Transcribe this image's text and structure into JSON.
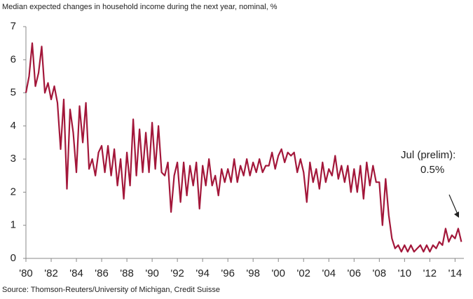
{
  "chart_data": {
    "type": "line",
    "title": "Median expected changes in household income during the next year, nominal, %",
    "source": "Source: Thomson-Reuters/University of Michigan, Credit Suisse",
    "annotations": [
      "Jul (prelim):",
      "0.5%"
    ],
    "xlim": [
      1980,
      2014.7
    ],
    "ylim": [
      0,
      7
    ],
    "yticks": [
      0,
      1,
      2,
      3,
      4,
      5,
      6,
      7
    ],
    "xticks": [
      {
        "value": 1980,
        "label": "'80"
      },
      {
        "value": 1982,
        "label": "'82"
      },
      {
        "value": 1984,
        "label": "'84"
      },
      {
        "value": 1986,
        "label": "'86"
      },
      {
        "value": 1988,
        "label": "'88"
      },
      {
        "value": 1990,
        "label": "'90"
      },
      {
        "value": 1992,
        "label": "'92"
      },
      {
        "value": 1994,
        "label": "'94"
      },
      {
        "value": 1996,
        "label": "'96"
      },
      {
        "value": 1998,
        "label": "'98"
      },
      {
        "value": 2000,
        "label": "'00"
      },
      {
        "value": 2002,
        "label": "'02"
      },
      {
        "value": 2004,
        "label": "'04"
      },
      {
        "value": 2006,
        "label": "'06"
      },
      {
        "value": 2008,
        "label": "'08"
      },
      {
        "value": 2010,
        "label": "'10"
      },
      {
        "value": 2012,
        "label": "'12"
      },
      {
        "value": 2014,
        "label": "'14"
      }
    ],
    "x": [
      1980,
      1980.25,
      1980.5,
      1980.75,
      1981,
      1981.25,
      1981.5,
      1981.75,
      1982,
      1982.25,
      1982.5,
      1982.75,
      1983,
      1983.25,
      1983.5,
      1983.75,
      1984,
      1984.25,
      1984.5,
      1984.75,
      1985,
      1985.25,
      1985.5,
      1985.75,
      1986,
      1986.25,
      1986.5,
      1986.75,
      1987,
      1987.25,
      1987.5,
      1987.75,
      1988,
      1988.25,
      1988.5,
      1988.75,
      1989,
      1989.25,
      1989.5,
      1989.75,
      1990,
      1990.25,
      1990.5,
      1990.75,
      1991,
      1991.25,
      1991.5,
      1991.75,
      1992,
      1992.25,
      1992.5,
      1992.75,
      1993,
      1993.25,
      1993.5,
      1993.75,
      1994,
      1994.25,
      1994.5,
      1994.75,
      1995,
      1995.25,
      1995.5,
      1995.75,
      1996,
      1996.25,
      1996.5,
      1996.75,
      1997,
      1997.25,
      1997.5,
      1997.75,
      1998,
      1998.25,
      1998.5,
      1998.75,
      1999,
      1999.25,
      1999.5,
      1999.75,
      2000,
      2000.25,
      2000.5,
      2000.75,
      2001,
      2001.25,
      2001.5,
      2001.75,
      2002,
      2002.25,
      2002.5,
      2002.75,
      2003,
      2003.25,
      2003.5,
      2003.75,
      2004,
      2004.25,
      2004.5,
      2004.75,
      2005,
      2005.25,
      2005.5,
      2005.75,
      2006,
      2006.25,
      2006.5,
      2006.75,
      2007,
      2007.25,
      2007.5,
      2007.75,
      2008,
      2008.25,
      2008.5,
      2008.75,
      2009,
      2009.25,
      2009.5,
      2009.75,
      2010,
      2010.25,
      2010.5,
      2010.75,
      2011,
      2011.25,
      2011.5,
      2011.75,
      2012,
      2012.25,
      2012.5,
      2012.75,
      2013,
      2013.25,
      2013.5,
      2013.75,
      2014,
      2014.25,
      2014.5
    ],
    "series": [
      {
        "color": "#a3173a",
        "values": [
          5.0,
          5.5,
          6.5,
          5.2,
          5.6,
          6.4,
          5.0,
          5.3,
          4.8,
          5.2,
          4.7,
          3.3,
          4.8,
          2.1,
          4.5,
          3.8,
          2.6,
          4.6,
          3.5,
          4.7,
          2.7,
          3.0,
          2.5,
          3.2,
          3.4,
          2.6,
          3.4,
          2.5,
          3.3,
          2.2,
          3.0,
          1.8,
          3.2,
          2.2,
          4.2,
          2.5,
          3.9,
          2.6,
          3.8,
          2.6,
          4.1,
          2.7,
          4.0,
          2.6,
          2.5,
          2.9,
          1.4,
          2.5,
          2.9,
          1.7,
          2.9,
          1.9,
          2.8,
          2.2,
          2.9,
          1.5,
          2.8,
          2.2,
          3.0,
          2.2,
          2.5,
          1.9,
          2.7,
          2.3,
          2.7,
          2.3,
          3.0,
          2.3,
          2.8,
          2.5,
          3.0,
          2.5,
          2.9,
          2.6,
          3.0,
          2.6,
          2.8,
          2.8,
          3.2,
          2.7,
          3.1,
          3.3,
          2.9,
          3.2,
          3.1,
          3.2,
          2.6,
          3.0,
          2.6,
          1.7,
          2.9,
          2.3,
          2.7,
          2.1,
          2.9,
          2.3,
          2.7,
          2.5,
          3.1,
          2.4,
          2.8,
          2.3,
          2.8,
          2.0,
          2.7,
          2.0,
          2.8,
          1.8,
          2.9,
          2.2,
          2.8,
          2.3,
          2.3,
          1.0,
          2.4,
          1.3,
          0.6,
          0.3,
          0.4,
          0.2,
          0.4,
          0.2,
          0.4,
          0.2,
          0.3,
          0.4,
          0.2,
          0.4,
          0.2,
          0.4,
          0.3,
          0.5,
          0.4,
          0.9,
          0.5,
          0.7,
          0.6,
          0.9,
          0.5
        ]
      }
    ]
  }
}
